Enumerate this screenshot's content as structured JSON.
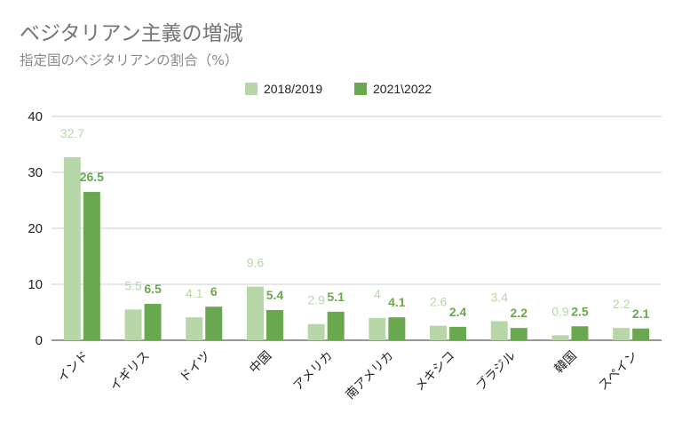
{
  "chart_data": {
    "type": "bar",
    "title": "ベジタリアン主義の増減",
    "subtitle": "指定国のベジタリアンの割合（%）",
    "categories": [
      "インド",
      "イギリス",
      "ドイツ",
      "中国",
      "アメリカ",
      "南アメリカ",
      "メキシコ",
      "ブラジル",
      "韓国",
      "スペイン"
    ],
    "series": [
      {
        "name": "2018/2019",
        "color": "#b7d7a8",
        "label_color": "#b7d7a8",
        "values": [
          32.7,
          5.5,
          4.1,
          9.6,
          2.9,
          4,
          2.6,
          3.4,
          0.9,
          2.2
        ]
      },
      {
        "name": "2021\\2022",
        "color": "#6aa84f",
        "label_color": "#6aa84f",
        "values": [
          26.5,
          6.5,
          6,
          5.4,
          5.1,
          4.1,
          2.4,
          2.2,
          2.5,
          2.1
        ]
      }
    ],
    "ylim": [
      0,
      40
    ],
    "yticks": [
      0,
      10,
      20,
      30,
      40
    ],
    "grid": true,
    "legend": "top-center"
  }
}
